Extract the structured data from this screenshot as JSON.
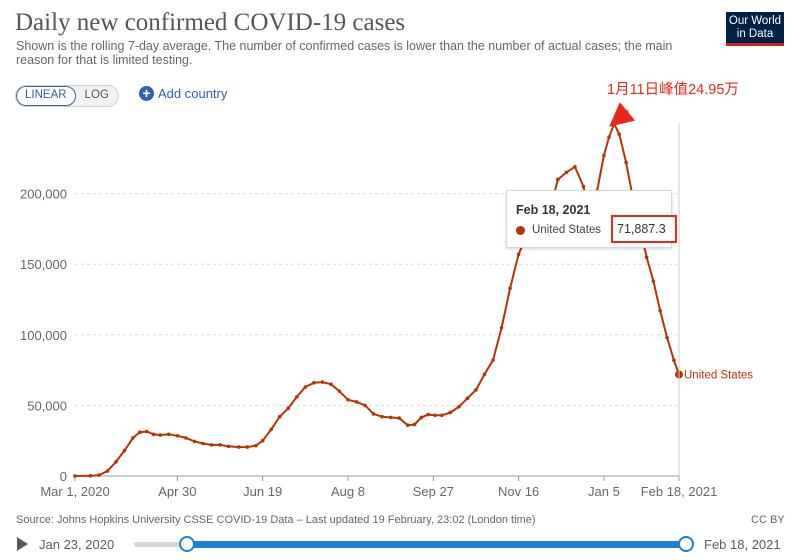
{
  "header": {
    "title": "Daily new confirmed COVID-19 cases",
    "subtitle": "Shown is the rolling 7-day average. The number of confirmed cases is lower than the number of actual cases; the main reason for that is limited testing.",
    "logo_line1": "Our World",
    "logo_line2": "in Data"
  },
  "controls": {
    "scale_linear": "LINEAR",
    "scale_log": "LOG",
    "active_scale": "linear",
    "add_country": "Add country"
  },
  "annotation": {
    "text": "1月11日峰值24.95万",
    "color": "#e8281c"
  },
  "tooltip": {
    "date": "Feb 18, 2021",
    "series": "United States",
    "value": "71,887.3"
  },
  "footer": {
    "source": "Source: Johns Hopkins University CSSE COVID-19 Data – Last updated 19 February, 23:02 (London time)",
    "license": "CC BY"
  },
  "timeline": {
    "start_label": "Jan 23, 2020",
    "end_label": "Feb 18, 2021"
  },
  "colors": {
    "series": "#b13507",
    "accent": "#3360a9",
    "highlight": "#e8281c",
    "logo_bg": "#002147"
  },
  "chart_data": {
    "type": "line",
    "title": "Daily new confirmed COVID-19 cases",
    "subtitle": "Shown is the rolling 7-day average. The number of confirmed cases is lower than the number of actual cases; the main reason for that is limited testing.",
    "xlabel": "",
    "ylabel": "",
    "x_range": [
      "2020-03-01",
      "2021-02-18"
    ],
    "ylim": [
      0,
      250000
    ],
    "y_ticks": [
      0,
      50000,
      100000,
      150000,
      200000
    ],
    "y_tick_labels": [
      "0",
      "50,000",
      "100,000",
      "150,000",
      "200,000"
    ],
    "x_ticks": [
      "2020-03-01",
      "2020-04-30",
      "2020-06-19",
      "2020-08-08",
      "2020-09-27",
      "2020-11-16",
      "2021-01-05",
      "2021-02-18"
    ],
    "x_tick_labels": [
      "Mar 1, 2020",
      "Apr 30",
      "Jun 19",
      "Aug 8",
      "Sep 27",
      "Nov 16",
      "Jan 5",
      "Feb 18, 2021"
    ],
    "grid": "horizontal dashed",
    "series": [
      {
        "name": "United States",
        "end_label": "United States",
        "points": [
          [
            "2020-03-01",
            0
          ],
          [
            "2020-03-10",
            200
          ],
          [
            "2020-03-15",
            600
          ],
          [
            "2020-03-20",
            3500
          ],
          [
            "2020-03-25",
            10000
          ],
          [
            "2020-03-30",
            18000
          ],
          [
            "2020-04-04",
            27000
          ],
          [
            "2020-04-08",
            31000
          ],
          [
            "2020-04-12",
            31500
          ],
          [
            "2020-04-16",
            29500
          ],
          [
            "2020-04-20",
            29000
          ],
          [
            "2020-04-25",
            29500
          ],
          [
            "2020-04-30",
            28500
          ],
          [
            "2020-05-05",
            27000
          ],
          [
            "2020-05-10",
            24500
          ],
          [
            "2020-05-15",
            23000
          ],
          [
            "2020-05-20",
            22000
          ],
          [
            "2020-05-25",
            22000
          ],
          [
            "2020-05-30",
            21000
          ],
          [
            "2020-06-05",
            20500
          ],
          [
            "2020-06-10",
            20500
          ],
          [
            "2020-06-15",
            21500
          ],
          [
            "2020-06-19",
            25000
          ],
          [
            "2020-06-24",
            33000
          ],
          [
            "2020-06-29",
            42000
          ],
          [
            "2020-07-04",
            48000
          ],
          [
            "2020-07-09",
            56000
          ],
          [
            "2020-07-14",
            63000
          ],
          [
            "2020-07-19",
            66000
          ],
          [
            "2020-07-24",
            66500
          ],
          [
            "2020-07-29",
            65000
          ],
          [
            "2020-08-03",
            60000
          ],
          [
            "2020-08-08",
            54000
          ],
          [
            "2020-08-13",
            52500
          ],
          [
            "2020-08-18",
            50000
          ],
          [
            "2020-08-23",
            44000
          ],
          [
            "2020-08-28",
            42000
          ],
          [
            "2020-09-02",
            41500
          ],
          [
            "2020-09-07",
            41000
          ],
          [
            "2020-09-12",
            36000
          ],
          [
            "2020-09-16",
            36500
          ],
          [
            "2020-09-20",
            41500
          ],
          [
            "2020-09-24",
            43500
          ],
          [
            "2020-09-28",
            43000
          ],
          [
            "2020-10-02",
            43000
          ],
          [
            "2020-10-07",
            45000
          ],
          [
            "2020-10-12",
            49000
          ],
          [
            "2020-10-17",
            55000
          ],
          [
            "2020-10-22",
            61000
          ],
          [
            "2020-10-27",
            72000
          ],
          [
            "2020-11-01",
            82000
          ],
          [
            "2020-11-06",
            105000
          ],
          [
            "2020-11-11",
            133000
          ],
          [
            "2020-11-16",
            157000
          ],
          [
            "2020-11-21",
            171000
          ],
          [
            "2020-11-26",
            172000
          ],
          [
            "2020-11-30",
            163000
          ],
          [
            "2020-12-04",
            187000
          ],
          [
            "2020-12-09",
            210000
          ],
          [
            "2020-12-14",
            215000
          ],
          [
            "2020-12-19",
            219000
          ],
          [
            "2020-12-24",
            205000
          ],
          [
            "2020-12-28",
            181000
          ],
          [
            "2021-01-01",
            202000
          ],
          [
            "2021-01-05",
            227000
          ],
          [
            "2021-01-08",
            240000
          ],
          [
            "2021-01-11",
            249500
          ],
          [
            "2021-01-14",
            242000
          ],
          [
            "2021-01-18",
            222000
          ],
          [
            "2021-01-22",
            197000
          ],
          [
            "2021-01-26",
            177000
          ],
          [
            "2021-01-30",
            155000
          ],
          [
            "2021-02-03",
            138000
          ],
          [
            "2021-02-07",
            117000
          ],
          [
            "2021-02-11",
            98000
          ],
          [
            "2021-02-15",
            82000
          ],
          [
            "2021-02-18",
            71887.3
          ]
        ]
      }
    ]
  }
}
